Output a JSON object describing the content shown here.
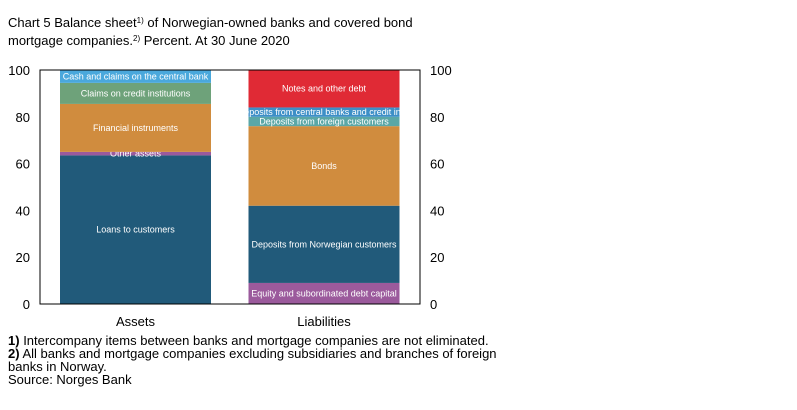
{
  "chart_data": {
    "type": "stacked-bar",
    "title": [
      [
        "Chart 5 Balance sheet",
        "1)",
        " of Norwegian-owned banks and covered bond"
      ],
      [
        "mortgage companies.",
        "2)",
        " Percent. At 30 June 2020"
      ]
    ],
    "categories": [
      "Assets",
      "Liabilities"
    ],
    "series": [
      {
        "name": "Loans to customers",
        "color": "#215a7a",
        "values": [
          63.5,
          null
        ]
      },
      {
        "name": "Other assets",
        "color": "#9b5a9c",
        "values": [
          1.5,
          null
        ]
      },
      {
        "name": "Financial instruments",
        "color": "#d08c3e",
        "values": [
          20.5,
          null
        ]
      },
      {
        "name": "Claims on credit institutions",
        "color": "#6ea27a",
        "values": [
          9,
          null
        ]
      },
      {
        "name": "Cash and claims on the central bank",
        "color": "#4aa8dc",
        "values": [
          5.5,
          null
        ]
      },
      {
        "name": "Equity and subordinated debt capital",
        "color": "#9b5a9c",
        "values": [
          null,
          9
        ]
      },
      {
        "name": "Deposits from Norwegian customers",
        "color": "#215a7a",
        "values": [
          null,
          33
        ]
      },
      {
        "name": "Bonds",
        "color": "#d08c3e",
        "values": [
          null,
          34
        ]
      },
      {
        "name": "Deposits from foreign customers",
        "color": "#5aa7a7",
        "values": [
          null,
          4
        ]
      },
      {
        "name": "Deposits from central banks and credit inst.",
        "color": "#3d8fc7",
        "values": [
          null,
          4
        ]
      },
      {
        "name": "Notes and other debt",
        "color": "#e02a35",
        "values": [
          null,
          16
        ]
      }
    ],
    "ylim": [
      0,
      100
    ],
    "yticks": [
      0,
      20,
      40,
      60,
      80,
      100
    ],
    "y2lim": [
      0,
      100
    ],
    "y2ticks": [
      0,
      20,
      40,
      60,
      80,
      100
    ],
    "grid": false,
    "notes": [
      {
        "marker": "1)",
        "lines": [
          "Intercompany items between banks and mortgage companies are not eliminated."
        ]
      },
      {
        "marker": "2)",
        "lines": [
          "All banks and mortgage companies excluding subsidiaries and branches of foreign",
          "banks in Norway."
        ]
      }
    ],
    "source": "Source: Norges Bank"
  }
}
